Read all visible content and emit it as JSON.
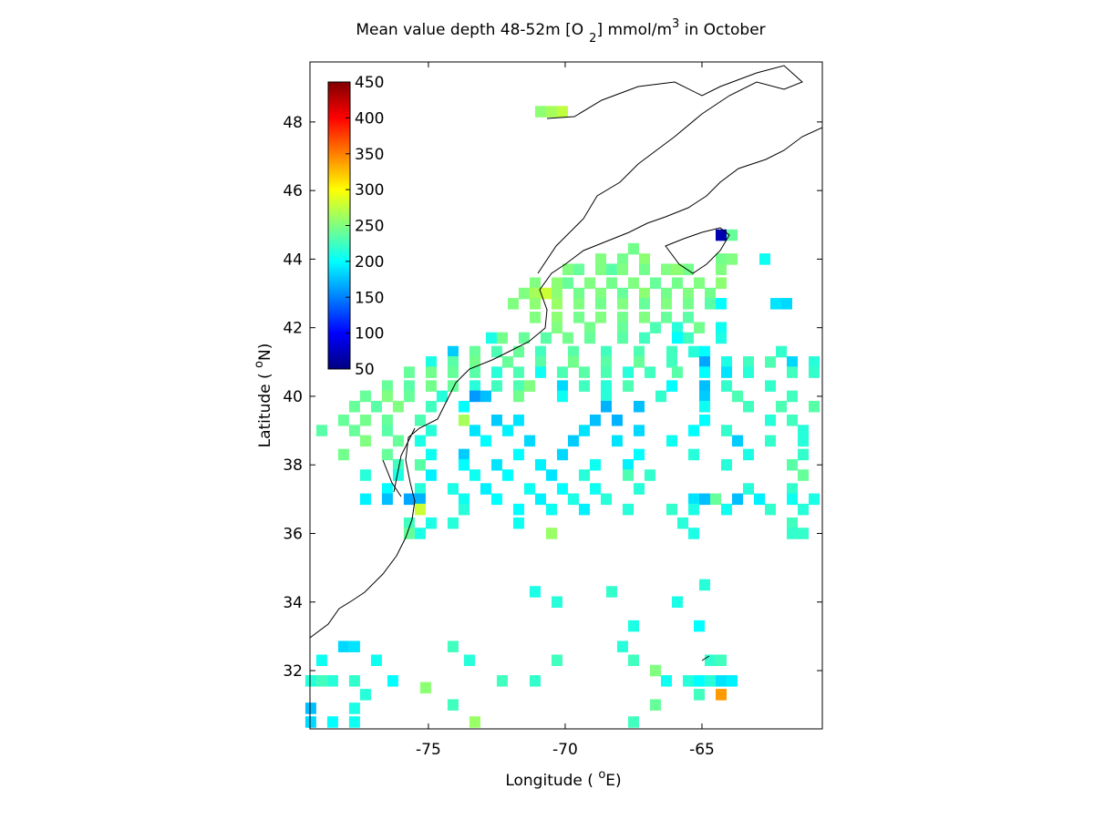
{
  "chart_data": {
    "type": "gridmap",
    "title_parts": [
      "Mean value depth 48-52m [O",
      "2",
      "] mmol/m",
      "3",
      " in October"
    ],
    "xlabel_parts": [
      "Longitude ( ",
      "o",
      "E)"
    ],
    "ylabel_parts": [
      "Latitude ( ",
      "o",
      "N)"
    ],
    "xlim": [
      -79.33,
      -60.6
    ],
    "ylim": [
      30.3,
      49.75
    ],
    "xticks": [
      -75,
      -70,
      -65
    ],
    "yticks": [
      32,
      34,
      36,
      38,
      40,
      42,
      44,
      46,
      48
    ],
    "colormap": "jet",
    "clim": [
      50,
      450
    ],
    "colorbar_ticks": [
      50,
      100,
      150,
      200,
      250,
      300,
      350,
      400,
      450
    ],
    "points": [
      [
        -70.9,
        48.3,
        255
      ],
      [
        -70.5,
        48.3,
        265
      ],
      [
        -70.1,
        48.3,
        275
      ],
      [
        -64.3,
        44.7,
        70
      ],
      [
        -63.9,
        44.7,
        240
      ],
      [
        -67.5,
        44.3,
        245
      ],
      [
        -68.7,
        44.0,
        250
      ],
      [
        -67.9,
        44.0,
        245
      ],
      [
        -67.1,
        44.0,
        255
      ],
      [
        -64.3,
        44.0,
        245
      ],
      [
        -63.9,
        44.0,
        250
      ],
      [
        -62.7,
        44.0,
        205
      ],
      [
        -69.9,
        43.7,
        250
      ],
      [
        -69.5,
        43.7,
        240
      ],
      [
        -68.7,
        43.7,
        250
      ],
      [
        -68.3,
        43.7,
        235
      ],
      [
        -67.9,
        43.7,
        250
      ],
      [
        -67.1,
        43.7,
        245
      ],
      [
        -66.3,
        43.7,
        250
      ],
      [
        -65.9,
        43.7,
        255
      ],
      [
        -65.5,
        43.7,
        245
      ],
      [
        -64.3,
        43.7,
        250
      ],
      [
        -71.1,
        43.3,
        250
      ],
      [
        -70.3,
        43.3,
        255
      ],
      [
        -69.9,
        43.3,
        240
      ],
      [
        -69.1,
        43.3,
        250
      ],
      [
        -68.3,
        43.3,
        245
      ],
      [
        -67.5,
        43.3,
        250
      ],
      [
        -66.7,
        43.3,
        240
      ],
      [
        -65.9,
        43.3,
        245
      ],
      [
        -65.1,
        43.3,
        250
      ],
      [
        -64.3,
        43.3,
        255
      ],
      [
        -71.5,
        43.0,
        250
      ],
      [
        -71.1,
        43.0,
        265
      ],
      [
        -70.7,
        43.0,
        280
      ],
      [
        -70.3,
        43.0,
        255
      ],
      [
        -69.5,
        43.0,
        245
      ],
      [
        -68.7,
        43.0,
        250
      ],
      [
        -67.9,
        43.0,
        240
      ],
      [
        -67.1,
        43.0,
        255
      ],
      [
        -66.3,
        43.0,
        245
      ],
      [
        -65.5,
        43.0,
        250
      ],
      [
        -64.7,
        43.0,
        245
      ],
      [
        -71.9,
        42.7,
        250
      ],
      [
        -71.1,
        42.7,
        255
      ],
      [
        -70.3,
        42.7,
        260
      ],
      [
        -69.5,
        42.7,
        250
      ],
      [
        -68.7,
        42.7,
        245
      ],
      [
        -67.9,
        42.7,
        250
      ],
      [
        -67.1,
        42.7,
        240
      ],
      [
        -66.3,
        42.7,
        250
      ],
      [
        -65.5,
        42.7,
        245
      ],
      [
        -64.7,
        42.7,
        235
      ],
      [
        -64.3,
        42.7,
        200
      ],
      [
        -62.3,
        42.7,
        190
      ],
      [
        -61.9,
        42.7,
        185
      ],
      [
        -71.1,
        42.3,
        250
      ],
      [
        -70.3,
        42.3,
        255
      ],
      [
        -69.5,
        42.3,
        245
      ],
      [
        -68.7,
        42.3,
        250
      ],
      [
        -67.9,
        42.3,
        245
      ],
      [
        -67.1,
        42.3,
        250
      ],
      [
        -66.3,
        42.3,
        240
      ],
      [
        -65.5,
        42.3,
        235
      ],
      [
        -70.3,
        42.0,
        250
      ],
      [
        -69.1,
        42.0,
        245
      ],
      [
        -67.9,
        42.0,
        240
      ],
      [
        -66.7,
        42.0,
        230
      ],
      [
        -65.9,
        42.0,
        215
      ],
      [
        -65.1,
        42.0,
        245
      ],
      [
        -64.3,
        42.0,
        205
      ],
      [
        -72.7,
        41.7,
        210
      ],
      [
        -72.3,
        41.7,
        245
      ],
      [
        -71.5,
        41.7,
        240
      ],
      [
        -70.7,
        41.7,
        235
      ],
      [
        -69.9,
        41.7,
        245
      ],
      [
        -69.1,
        41.7,
        240
      ],
      [
        -67.9,
        41.7,
        235
      ],
      [
        -67.1,
        41.7,
        225
      ],
      [
        -65.9,
        41.7,
        200
      ],
      [
        -65.5,
        41.7,
        225
      ],
      [
        -64.3,
        41.7,
        210
      ],
      [
        -74.1,
        41.3,
        180
      ],
      [
        -73.3,
        41.3,
        240
      ],
      [
        -72.5,
        41.3,
        230
      ],
      [
        -71.7,
        41.3,
        240
      ],
      [
        -70.9,
        41.3,
        225
      ],
      [
        -69.7,
        41.3,
        235
      ],
      [
        -68.5,
        41.3,
        225
      ],
      [
        -67.3,
        41.3,
        230
      ],
      [
        -66.1,
        41.3,
        225
      ],
      [
        -65.3,
        41.3,
        215
      ],
      [
        -64.9,
        41.3,
        200
      ],
      [
        -62.1,
        41.3,
        220
      ],
      [
        -74.9,
        41.0,
        210
      ],
      [
        -74.1,
        41.0,
        235
      ],
      [
        -73.3,
        41.0,
        245
      ],
      [
        -72.1,
        41.0,
        240
      ],
      [
        -70.9,
        41.0,
        235
      ],
      [
        -69.7,
        41.0,
        245
      ],
      [
        -68.5,
        41.0,
        235
      ],
      [
        -67.3,
        41.0,
        240
      ],
      [
        -66.1,
        41.0,
        225
      ],
      [
        -64.9,
        41.0,
        165
      ],
      [
        -64.1,
        41.0,
        210
      ],
      [
        -63.3,
        41.0,
        225
      ],
      [
        -62.5,
        41.0,
        230
      ],
      [
        -61.7,
        41.0,
        185
      ],
      [
        -60.9,
        41.0,
        215
      ],
      [
        -75.7,
        40.7,
        240
      ],
      [
        -74.9,
        40.7,
        245
      ],
      [
        -74.1,
        40.7,
        240
      ],
      [
        -73.3,
        40.7,
        235
      ],
      [
        -72.5,
        40.7,
        215
      ],
      [
        -71.7,
        40.7,
        230
      ],
      [
        -70.9,
        40.7,
        205
      ],
      [
        -70.1,
        40.7,
        230
      ],
      [
        -69.3,
        40.7,
        235
      ],
      [
        -68.5,
        40.7,
        230
      ],
      [
        -67.7,
        40.7,
        215
      ],
      [
        -66.9,
        40.7,
        225
      ],
      [
        -65.9,
        40.7,
        235
      ],
      [
        -64.9,
        40.7,
        200
      ],
      [
        -64.1,
        40.7,
        190
      ],
      [
        -63.3,
        40.7,
        215
      ],
      [
        -61.7,
        40.7,
        225
      ],
      [
        -60.9,
        40.7,
        220
      ],
      [
        -76.5,
        40.3,
        240
      ],
      [
        -75.7,
        40.3,
        235
      ],
      [
        -74.9,
        40.3,
        245
      ],
      [
        -74.1,
        40.3,
        240
      ],
      [
        -73.3,
        40.3,
        215
      ],
      [
        -72.5,
        40.3,
        225
      ],
      [
        -71.7,
        40.3,
        230
      ],
      [
        -71.3,
        40.3,
        250
      ],
      [
        -70.1,
        40.3,
        185
      ],
      [
        -69.3,
        40.3,
        225
      ],
      [
        -68.5,
        40.3,
        215
      ],
      [
        -67.7,
        40.3,
        230
      ],
      [
        -66.1,
        40.3,
        200
      ],
      [
        -64.9,
        40.3,
        175
      ],
      [
        -64.1,
        40.3,
        220
      ],
      [
        -62.5,
        40.3,
        220
      ],
      [
        -77.3,
        40.0,
        240
      ],
      [
        -76.5,
        40.0,
        250
      ],
      [
        -75.7,
        40.0,
        240
      ],
      [
        -74.5,
        40.0,
        215
      ],
      [
        -73.3,
        40.0,
        160
      ],
      [
        -72.9,
        40.0,
        175
      ],
      [
        -71.7,
        40.0,
        245
      ],
      [
        -70.1,
        40.0,
        205
      ],
      [
        -68.5,
        40.0,
        215
      ],
      [
        -66.5,
        40.0,
        220
      ],
      [
        -64.9,
        40.0,
        180
      ],
      [
        -63.7,
        40.0,
        230
      ],
      [
        -61.7,
        40.0,
        225
      ],
      [
        -77.7,
        39.7,
        240
      ],
      [
        -76.9,
        39.7,
        235
      ],
      [
        -76.1,
        39.7,
        250
      ],
      [
        -74.9,
        39.7,
        225
      ],
      [
        -73.7,
        39.7,
        200
      ],
      [
        -68.5,
        39.7,
        170
      ],
      [
        -67.3,
        39.7,
        175
      ],
      [
        -64.9,
        39.7,
        205
      ],
      [
        -63.3,
        39.7,
        225
      ],
      [
        -62.1,
        39.7,
        230
      ],
      [
        -60.9,
        39.7,
        235
      ],
      [
        -78.1,
        39.3,
        240
      ],
      [
        -77.3,
        39.3,
        245
      ],
      [
        -76.5,
        39.3,
        240
      ],
      [
        -75.3,
        39.3,
        230
      ],
      [
        -73.7,
        39.3,
        265
      ],
      [
        -72.5,
        39.3,
        180
      ],
      [
        -71.7,
        39.3,
        190
      ],
      [
        -68.9,
        39.3,
        175
      ],
      [
        -68.1,
        39.3,
        170
      ],
      [
        -64.9,
        39.3,
        200
      ],
      [
        -62.5,
        39.3,
        215
      ],
      [
        -61.7,
        39.3,
        225
      ],
      [
        -78.9,
        39.0,
        235
      ],
      [
        -77.7,
        39.0,
        240
      ],
      [
        -76.5,
        39.0,
        235
      ],
      [
        -74.9,
        39.0,
        215
      ],
      [
        -73.3,
        39.0,
        190
      ],
      [
        -72.1,
        39.0,
        195
      ],
      [
        -69.3,
        39.0,
        190
      ],
      [
        -67.3,
        39.0,
        185
      ],
      [
        -65.3,
        39.0,
        200
      ],
      [
        -64.1,
        39.0,
        220
      ],
      [
        -61.3,
        39.0,
        215
      ],
      [
        -77.3,
        38.7,
        250
      ],
      [
        -76.1,
        38.7,
        240
      ],
      [
        -75.3,
        38.7,
        210
      ],
      [
        -72.9,
        38.7,
        200
      ],
      [
        -71.3,
        38.7,
        185
      ],
      [
        -69.7,
        38.7,
        180
      ],
      [
        -68.1,
        38.7,
        190
      ],
      [
        -66.1,
        38.7,
        205
      ],
      [
        -63.7,
        38.7,
        180
      ],
      [
        -62.5,
        38.7,
        220
      ],
      [
        -61.3,
        38.7,
        215
      ],
      [
        -78.1,
        38.3,
        245
      ],
      [
        -76.5,
        38.3,
        240
      ],
      [
        -74.9,
        38.3,
        205
      ],
      [
        -73.7,
        38.3,
        180
      ],
      [
        -71.7,
        38.3,
        200
      ],
      [
        -70.1,
        38.3,
        185
      ],
      [
        -67.3,
        38.3,
        200
      ],
      [
        -65.3,
        38.3,
        215
      ],
      [
        -63.3,
        38.3,
        210
      ],
      [
        -61.3,
        38.3,
        220
      ],
      [
        -76.1,
        38.0,
        225
      ],
      [
        -75.3,
        38.0,
        235
      ],
      [
        -73.7,
        38.0,
        200
      ],
      [
        -72.5,
        38.0,
        190
      ],
      [
        -70.9,
        38.0,
        195
      ],
      [
        -68.9,
        38.0,
        205
      ],
      [
        -67.7,
        38.0,
        195
      ],
      [
        -64.1,
        38.0,
        215
      ],
      [
        -61.7,
        38.0,
        235
      ],
      [
        -77.3,
        37.7,
        215
      ],
      [
        -76.1,
        37.7,
        210
      ],
      [
        -74.9,
        37.7,
        195
      ],
      [
        -73.3,
        37.7,
        205
      ],
      [
        -72.1,
        37.7,
        200
      ],
      [
        -70.5,
        37.7,
        190
      ],
      [
        -69.3,
        37.7,
        215
      ],
      [
        -67.7,
        37.7,
        230
      ],
      [
        -66.9,
        37.7,
        220
      ],
      [
        -61.3,
        37.7,
        240
      ],
      [
        -76.5,
        37.3,
        200
      ],
      [
        -75.3,
        37.3,
        215
      ],
      [
        -74.1,
        37.3,
        210
      ],
      [
        -72.9,
        37.3,
        195
      ],
      [
        -71.3,
        37.3,
        205
      ],
      [
        -70.1,
        37.3,
        200
      ],
      [
        -68.9,
        37.3,
        205
      ],
      [
        -67.3,
        37.3,
        215
      ],
      [
        -63.3,
        37.3,
        215
      ],
      [
        -61.7,
        37.3,
        220
      ],
      [
        -77.3,
        37.0,
        195
      ],
      [
        -76.5,
        37.0,
        175
      ],
      [
        -75.7,
        37.0,
        165
      ],
      [
        -75.3,
        37.0,
        170
      ],
      [
        -73.7,
        37.0,
        205
      ],
      [
        -72.5,
        37.0,
        200
      ],
      [
        -70.9,
        37.0,
        195
      ],
      [
        -69.7,
        37.0,
        210
      ],
      [
        -68.5,
        37.0,
        215
      ],
      [
        -65.3,
        37.0,
        190
      ],
      [
        -64.9,
        37.0,
        175
      ],
      [
        -64.5,
        37.0,
        240
      ],
      [
        -63.7,
        37.0,
        175
      ],
      [
        -62.9,
        37.0,
        195
      ],
      [
        -61.7,
        37.0,
        205
      ],
      [
        -60.9,
        37.0,
        210
      ],
      [
        -75.3,
        36.7,
        280
      ],
      [
        -73.7,
        36.7,
        215
      ],
      [
        -71.7,
        36.7,
        200
      ],
      [
        -70.5,
        36.7,
        205
      ],
      [
        -69.3,
        36.7,
        195
      ],
      [
        -67.7,
        36.7,
        215
      ],
      [
        -66.1,
        36.7,
        220
      ],
      [
        -65.3,
        36.7,
        210
      ],
      [
        -64.1,
        36.7,
        205
      ],
      [
        -62.5,
        36.7,
        220
      ],
      [
        -61.3,
        36.7,
        215
      ],
      [
        -75.7,
        36.3,
        225
      ],
      [
        -74.9,
        36.3,
        210
      ],
      [
        -74.1,
        36.3,
        215
      ],
      [
        -71.7,
        36.3,
        205
      ],
      [
        -65.7,
        36.3,
        215
      ],
      [
        -61.7,
        36.3,
        225
      ],
      [
        -75.7,
        36.0,
        240
      ],
      [
        -75.3,
        36.0,
        210
      ],
      [
        -70.5,
        36.0,
        260
      ],
      [
        -65.3,
        36.0,
        210
      ],
      [
        -61.7,
        36.0,
        220
      ],
      [
        -61.3,
        36.0,
        220
      ],
      [
        -71.1,
        34.3,
        210
      ],
      [
        -70.3,
        34.0,
        215
      ],
      [
        -68.3,
        34.3,
        220
      ],
      [
        -65.9,
        34.0,
        210
      ],
      [
        -64.9,
        34.5,
        215
      ],
      [
        -67.5,
        33.3,
        210
      ],
      [
        -65.1,
        33.3,
        200
      ],
      [
        -67.9,
        32.7,
        215
      ],
      [
        -67.5,
        32.3,
        225
      ],
      [
        -66.7,
        32.0,
        250
      ],
      [
        -70.3,
        32.3,
        225
      ],
      [
        -71.1,
        31.7,
        220
      ],
      [
        -72.3,
        31.7,
        225
      ],
      [
        -73.5,
        32.3,
        215
      ],
      [
        -74.1,
        32.7,
        225
      ],
      [
        -75.1,
        31.5,
        255
      ],
      [
        -76.3,
        31.7,
        200
      ],
      [
        -76.9,
        32.3,
        205
      ],
      [
        -77.7,
        32.7,
        190
      ],
      [
        -78.1,
        32.7,
        185
      ],
      [
        -78.9,
        32.3,
        205
      ],
      [
        -78.5,
        31.7,
        215
      ],
      [
        -77.7,
        31.7,
        220
      ],
      [
        -77.3,
        31.3,
        215
      ],
      [
        -77.7,
        30.9,
        210
      ],
      [
        -78.9,
        31.7,
        225
      ],
      [
        -79.3,
        31.7,
        215
      ],
      [
        -79.3,
        30.9,
        175
      ],
      [
        -79.3,
        30.5,
        185
      ],
      [
        -78.5,
        30.5,
        200
      ],
      [
        -77.7,
        30.5,
        205
      ],
      [
        -74.1,
        31.0,
        225
      ],
      [
        -73.3,
        30.5,
        260
      ],
      [
        -67.5,
        30.5,
        225
      ],
      [
        -66.7,
        31.0,
        240
      ],
      [
        -65.5,
        31.7,
        215
      ],
      [
        -64.7,
        31.7,
        215
      ],
      [
        -64.3,
        31.3,
        340
      ],
      [
        -64.3,
        31.7,
        190
      ],
      [
        -63.9,
        31.7,
        195
      ],
      [
        -65.1,
        31.3,
        225
      ],
      [
        -65.1,
        31.7,
        200
      ],
      [
        -64.7,
        32.3,
        220
      ],
      [
        -64.3,
        32.3,
        225
      ],
      [
        -66.3,
        31.7,
        205
      ]
    ]
  }
}
